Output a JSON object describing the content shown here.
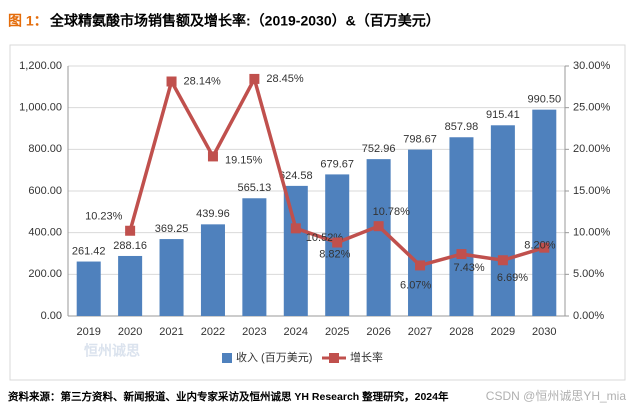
{
  "chart_data": {
    "type": "bar_line",
    "figure_label": "图 1：",
    "title": "全球精氨酸市场销售额及增长率:（2019-2030）&（百万美元）",
    "categories": [
      "2019",
      "2020",
      "2021",
      "2022",
      "2023",
      "2024",
      "2025",
      "2026",
      "2027",
      "2028",
      "2029",
      "2030"
    ],
    "series": [
      {
        "name": "收入 (百万美元)",
        "type": "bar",
        "color": "#4f81bd",
        "values": [
          261.42,
          288.16,
          369.25,
          439.96,
          565.13,
          624.58,
          679.67,
          752.96,
          798.67,
          857.98,
          915.41,
          990.5
        ],
        "value_labels": [
          "261.42",
          "288.16",
          "369.25",
          "439.96",
          "565.13",
          "624.58",
          "679.67",
          "752.96",
          "798.67",
          "857.98",
          "915.41",
          "990.50"
        ]
      },
      {
        "name": "增长率",
        "type": "line",
        "axis": "y2",
        "color": "#c0504d",
        "values": [
          null,
          10.23,
          28.14,
          19.15,
          28.45,
          10.52,
          8.82,
          10.78,
          6.07,
          7.43,
          6.69,
          8.2
        ],
        "value_labels": [
          null,
          "10.23%",
          "28.14%",
          "19.15%",
          "28.45%",
          "10.52%",
          "8.82%",
          "10.78%",
          "6.07%",
          "7.43%",
          "6.69%",
          "8.20%"
        ]
      }
    ],
    "ylim": [
      0,
      1200
    ],
    "yticks": [
      {
        "value": 0,
        "label": "0.00"
      },
      {
        "value": 200,
        "label": "200.00"
      },
      {
        "value": 400,
        "label": "400.00"
      },
      {
        "value": 600,
        "label": "600.00"
      },
      {
        "value": 800,
        "label": "800.00"
      },
      {
        "value": 1000,
        "label": "1,000.00"
      },
      {
        "value": 1200,
        "label": "1,200.00"
      }
    ],
    "y2lim": [
      0,
      30
    ],
    "y2ticks": [
      {
        "value": 0,
        "label": "0.00%"
      },
      {
        "value": 5,
        "label": "5.00%"
      },
      {
        "value": 10,
        "label": "10.00%"
      },
      {
        "value": 15,
        "label": "15.00%"
      },
      {
        "value": 20,
        "label": "20.00%"
      },
      {
        "value": 25,
        "label": "25.00%"
      },
      {
        "value": 30,
        "label": "30.00%"
      }
    ],
    "legend": "bottom",
    "source": "资料来源：第三方资料、新闻报道、业内专家采访及恒州诚思 YH Research 整理研究，2024年",
    "logo_text": "恒州诚思",
    "watermark": "CSDN @恒州诚思YH_mia"
  }
}
